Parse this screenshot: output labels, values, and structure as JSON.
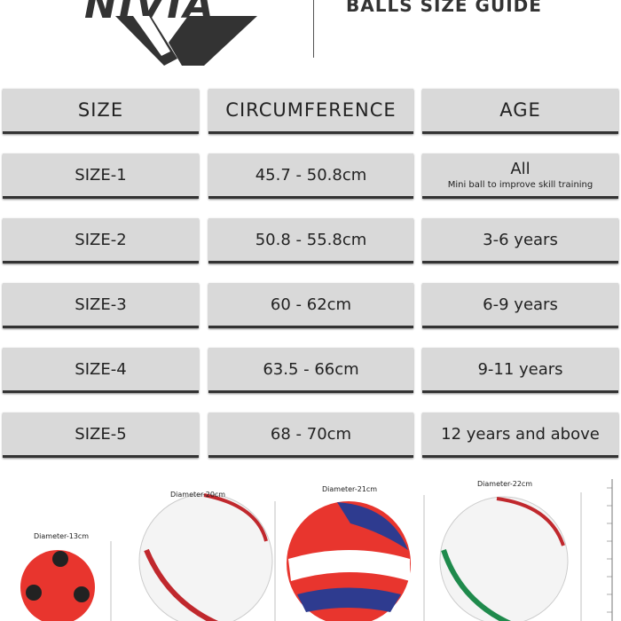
{
  "header": {
    "logo": "NIVIA",
    "title": "BALLS SIZE GUIDE"
  },
  "table": {
    "headers": [
      "SIZE",
      "CIRCUMFERENCE",
      "AGE"
    ],
    "rows": [
      {
        "size": "SIZE-1",
        "circumference": "45.7 - 50.8cm",
        "age": "All",
        "note": "Mini ball to improve skill training"
      },
      {
        "size": "SIZE-2",
        "circumference": "50.8 - 55.8cm",
        "age": "3-6 years"
      },
      {
        "size": "SIZE-3",
        "circumference": "60 - 62cm",
        "age": "6-9 years"
      },
      {
        "size": "SIZE-4",
        "circumference": "63.5 - 66cm",
        "age": "9-11 years"
      },
      {
        "size": "SIZE-5",
        "circumference": "68 - 70cm",
        "age": "12 years and above"
      }
    ]
  },
  "balls": [
    {
      "label": "Diameter-13cm"
    },
    {
      "label": "Diameter-20cm"
    },
    {
      "label": "Diameter-21cm"
    },
    {
      "label": "Diameter-22cm"
    }
  ]
}
